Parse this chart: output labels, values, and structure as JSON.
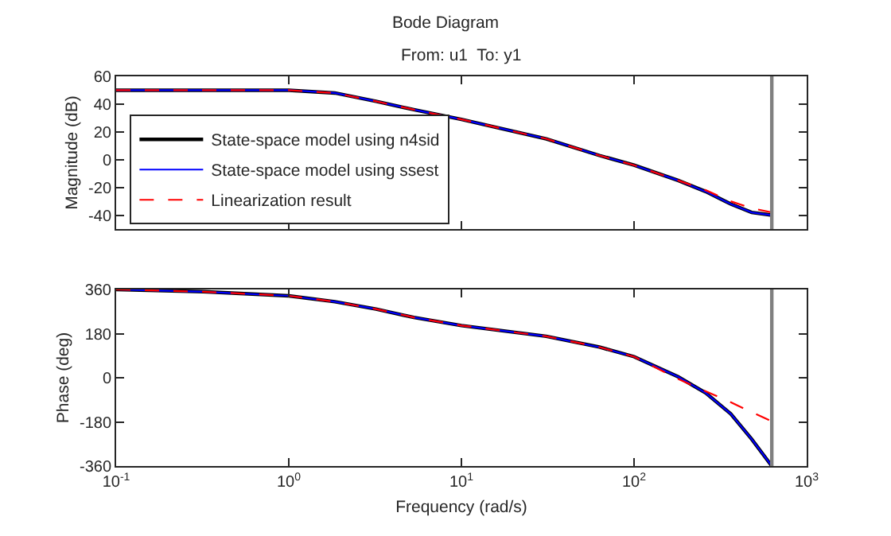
{
  "chart_data": [
    {
      "type": "line",
      "title": "Bode Diagram",
      "subtitle": "From: u1  To: y1",
      "ylabel": "Magnitude (dB)",
      "log": "x",
      "xlim": [
        0.1,
        1000
      ],
      "xticks": [
        {
          "value": 0.1,
          "label": null
        },
        {
          "value": 1,
          "label": null
        },
        {
          "value": 10,
          "label": null
        },
        {
          "value": 100,
          "label": null
        },
        {
          "value": 1000,
          "label": null
        }
      ],
      "ylim": [
        -50,
        60
      ],
      "yticks": [
        -40,
        -20,
        0,
        20,
        40,
        60
      ],
      "tick_labels": "y",
      "grid": false,
      "legend": "bottom left",
      "x": [
        0.1,
        0.32,
        1,
        1.85,
        3.2,
        5.3,
        10,
        31,
        63,
        100,
        180,
        260,
        363,
        480,
        628
      ],
      "series": [
        {
          "name": "State-space model using n4sid",
          "color": "#000000",
          "line_style": "solid",
          "values": [
            50,
            50,
            50,
            48,
            42,
            36,
            29,
            15,
            3,
            -4,
            -15,
            -23,
            -32,
            -38,
            -40
          ]
        },
        {
          "name": "State-space model using ssest",
          "color": "#0000ff",
          "line_style": "solid",
          "values": [
            50,
            50,
            50,
            48,
            42,
            36,
            29,
            15,
            3,
            -4,
            -15,
            -23,
            -32,
            -38,
            -40
          ]
        },
        {
          "name": "Linearization result",
          "color": "#ff0000",
          "line_style": "dashed",
          "values": [
            50,
            50,
            50,
            48,
            42,
            36,
            29,
            15,
            3,
            -4,
            -15,
            -22,
            -30,
            -35,
            -38
          ]
        }
      ],
      "ref_lines": [
        {
          "axis": "x",
          "value": 628,
          "label": null,
          "color": "#808080"
        }
      ]
    },
    {
      "type": "line",
      "xlabel": "Frequency (rad/s)",
      "ylabel": "Phase (deg)",
      "log": "x",
      "xlim": [
        0.1,
        1000
      ],
      "xticks": [
        {
          "value": 0.1,
          "label": "10$^{-1}$"
        },
        {
          "value": 1,
          "label": "10$^{0}$"
        },
        {
          "value": 10,
          "label": "10$^{1}$"
        },
        {
          "value": 100,
          "label": "10$^{2}$"
        },
        {
          "value": 1000,
          "label": "10$^{3}$"
        }
      ],
      "ylim": [
        -360,
        360
      ],
      "yticks": [
        -360,
        -180,
        0,
        180,
        360
      ],
      "grid": false,
      "legend": false,
      "x": [
        0.1,
        0.32,
        1,
        1.85,
        3.2,
        5.3,
        10,
        31,
        63,
        100,
        180,
        260,
        363,
        480,
        628
      ],
      "series": [
        {
          "color": "#000000",
          "line_style": "solid",
          "values": [
            360,
            351,
            334,
            310,
            280,
            246,
            213,
            169,
            125,
            86,
            4,
            -62,
            -147,
            -250,
            -360
          ]
        },
        {
          "color": "#0000ff",
          "line_style": "solid",
          "values": [
            360,
            351,
            334,
            310,
            280,
            246,
            213,
            169,
            125,
            86,
            4,
            -62,
            -147,
            -250,
            -360
          ]
        },
        {
          "color": "#ff0000",
          "line_style": "dashed",
          "values": [
            360,
            351,
            334,
            310,
            280,
            246,
            213,
            169,
            125,
            86,
            -5,
            -55,
            -100,
            -140,
            -178
          ]
        }
      ],
      "ref_lines": [
        {
          "axis": "x",
          "value": 628,
          "label": null,
          "color": "#808080"
        }
      ]
    }
  ]
}
